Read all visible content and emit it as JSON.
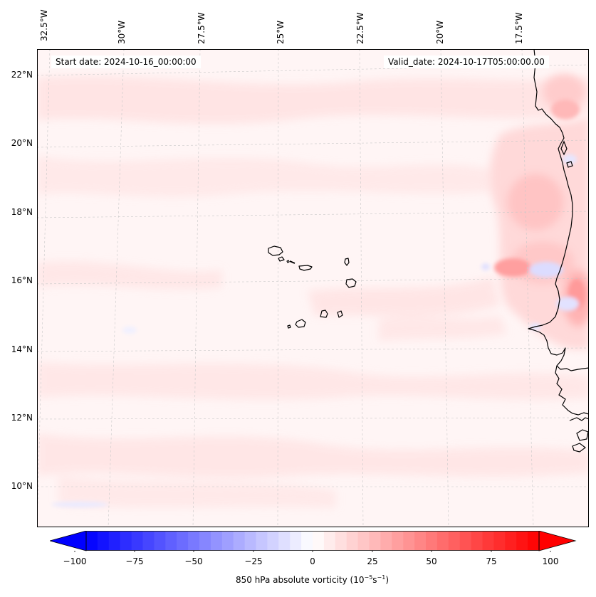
{
  "map": {
    "start_date_label": "Start date: 2024-10-16_00:00:00",
    "valid_date_label": "Valid_date: 2024-10-17T05:00:00.00",
    "lon_labels": [
      "32.5°W",
      "30°W",
      "27.5°W",
      "25°W",
      "22.5°W",
      "20°W",
      "17.5°W"
    ],
    "lat_labels": [
      "22°N",
      "20°N",
      "18°N",
      "16°N",
      "14°N",
      "12°N",
      "10°N"
    ],
    "colors": {
      "negative_max": "#0000ff",
      "zero": "#ffffff",
      "positive_max": "#ff0000",
      "coastline": "#000000",
      "gridline": "#c8c8c8"
    }
  },
  "colorbar": {
    "ticks": [
      "−100",
      "−75",
      "−50",
      "−25",
      "0",
      "25",
      "50",
      "75",
      "100"
    ],
    "min": -100,
    "max": 100,
    "extend": "both",
    "label_prefix": "850 hPa absolute vorticity (10",
    "label_exp1": "−5",
    "label_mid": "s",
    "label_exp2": "−1",
    "label_suffix": ")"
  }
}
